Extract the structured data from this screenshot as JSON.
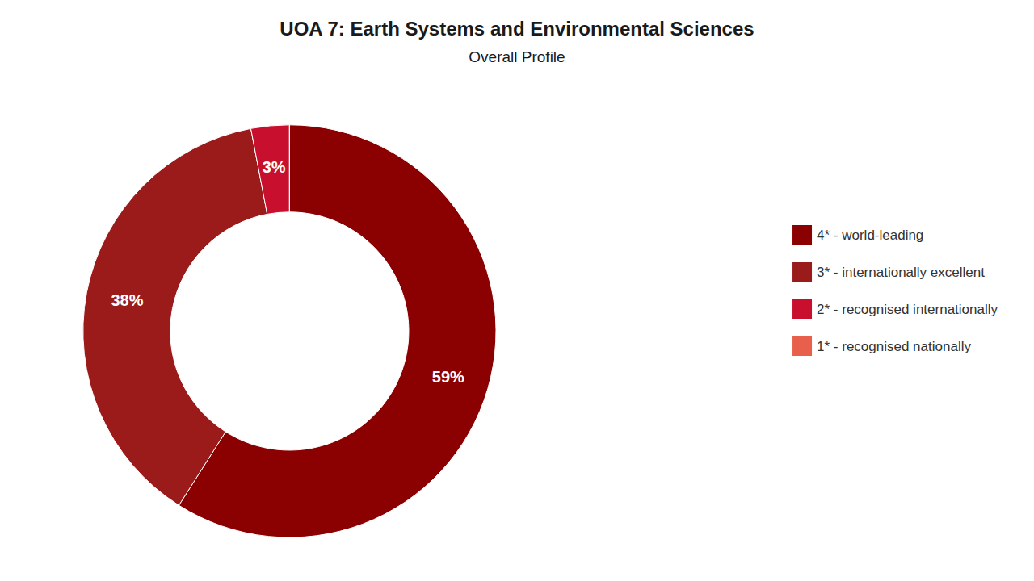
{
  "chart_data": {
    "type": "pie",
    "title": "UOA 7: Earth Systems and Environmental Sciences",
    "subtitle": "Overall Profile",
    "categories": [
      "4* - world-leading",
      "3* - internationally excellent",
      "2* - recognised internationally",
      "1* - recognised nationally"
    ],
    "values": [
      59,
      38,
      3,
      0.001
    ],
    "value_labels": [
      "59%",
      "38%",
      "3%",
      null
    ],
    "colors": [
      "#8B0000",
      "#9B1B1B",
      "#C8102E",
      "#E8604C"
    ],
    "data_labels": true,
    "legend": "right"
  }
}
